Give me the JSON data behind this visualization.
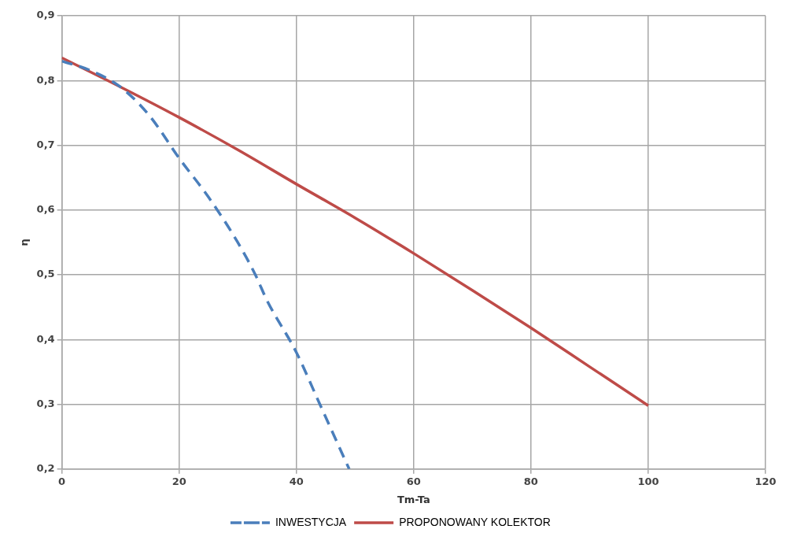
{
  "chart_data": {
    "type": "line",
    "xlabel": "Tm-Ta",
    "ylabel": "η",
    "xlim": [
      0,
      120
    ],
    "xticks": [
      0,
      20,
      40,
      60,
      80,
      100,
      120
    ],
    "ylim": [
      0.2,
      0.9
    ],
    "yticks": [
      {
        "value": 0.2,
        "label": "0,2"
      },
      {
        "value": 0.3,
        "label": "0,3"
      },
      {
        "value": 0.4,
        "label": "0,4"
      },
      {
        "value": 0.5,
        "label": "0,5"
      },
      {
        "value": 0.6,
        "label": "0,6"
      },
      {
        "value": 0.7,
        "label": "0,7"
      },
      {
        "value": 0.8,
        "label": "0,8"
      },
      {
        "value": 0.9,
        "label": "0,9"
      }
    ],
    "grid": true,
    "legend": "bottom",
    "marker": "none",
    "series": [
      {
        "name": "INWESTYCJA",
        "color": "#4a7ebb",
        "line_style": "dashed",
        "x": [
          0,
          5,
          10,
          15,
          20,
          25,
          30,
          33,
          35,
          40,
          44,
          49
        ],
        "values": [
          0.83,
          0.815,
          0.79,
          0.745,
          0.68,
          0.62,
          0.55,
          0.5,
          0.46,
          0.38,
          0.3,
          0.2
        ]
      },
      {
        "name": "PROPONOWANY KOLEKTOR",
        "color": "#be4b48",
        "line_style": "solid",
        "x": [
          0,
          10,
          20,
          30,
          40,
          50,
          60,
          70,
          80,
          90,
          100
        ],
        "values": [
          0.835,
          0.79,
          0.743,
          0.693,
          0.64,
          0.588,
          0.533,
          0.476,
          0.418,
          0.358,
          0.298
        ]
      }
    ]
  }
}
